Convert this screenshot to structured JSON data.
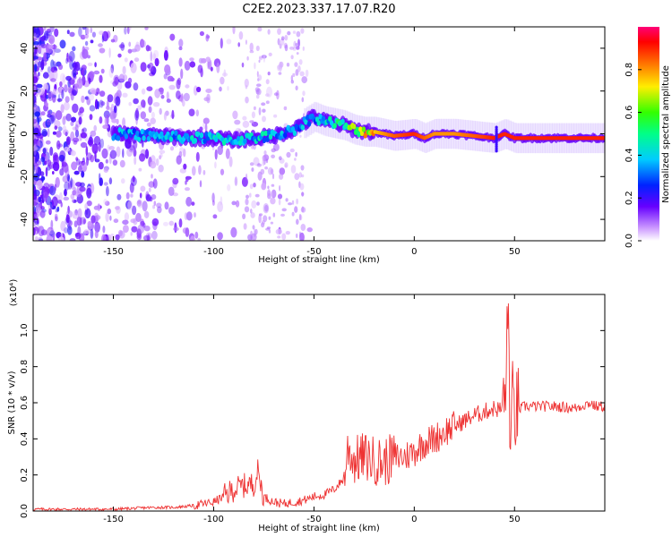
{
  "title": "C2E2.2023.337.17.07.R20",
  "chart_data": [
    {
      "type": "heatmap",
      "xlabel": "Height of straight line (km)",
      "ylabel": "Frequency (Hz)",
      "xlim": [
        -190,
        95
      ],
      "ylim": [
        -50,
        50
      ],
      "xticks": [
        -150,
        -100,
        -50,
        0,
        50
      ],
      "yticks": [
        -40,
        -20,
        0,
        20,
        40
      ],
      "colorbar": {
        "label": "Normalized spectral amplitude",
        "range": [
          0,
          1
        ],
        "ticks": [
          0.0,
          0.2,
          0.4,
          0.6,
          0.8
        ]
      },
      "ridge": {
        "x": [
          -150,
          -130,
          -110,
          -100,
          -90,
          -80,
          -70,
          -60,
          -55,
          -50,
          -45,
          -40,
          -35,
          -30,
          -25,
          -20,
          -15,
          -10,
          0,
          5,
          10,
          20,
          30,
          40,
          45,
          50,
          60,
          70,
          80,
          90,
          95
        ],
        "frequency": [
          0,
          -1,
          -2,
          -2,
          -3,
          -2,
          -1,
          2,
          5,
          8,
          6,
          5,
          4,
          2,
          1,
          1,
          0,
          -1,
          0,
          -2,
          0,
          0,
          -1,
          -2,
          0,
          -2,
          -2,
          -2,
          -2,
          -2,
          -2
        ],
        "amplitude": [
          0.35,
          0.35,
          0.4,
          0.4,
          0.4,
          0.4,
          0.4,
          0.35,
          0.35,
          0.35,
          0.4,
          0.45,
          0.5,
          0.6,
          0.7,
          0.75,
          0.8,
          0.85,
          0.9,
          0.85,
          0.8,
          0.8,
          0.85,
          0.9,
          0.9,
          0.9,
          0.9,
          0.9,
          0.9,
          0.9,
          0.9
        ]
      },
      "noise_region": {
        "x_range": [
          -190,
          -50
        ],
        "frequency_range": [
          -50,
          50
        ]
      },
      "secondary_noise_band": {
        "x_range": [
          -85,
          -55
        ]
      }
    },
    {
      "type": "line",
      "xlabel": "Height of straight line (km)",
      "ylabel": "SNR (10 * v/v)",
      "y_scale_label": "(x10⁴)",
      "xlim": [
        -190,
        95
      ],
      "ylim": [
        0,
        1.2
      ],
      "xticks": [
        -150,
        -100,
        -50,
        0,
        50
      ],
      "yticks": [
        0.0,
        0.2,
        0.4,
        0.6,
        0.8,
        1.0
      ],
      "series": [
        {
          "color": "#ee3333",
          "x": [
            -190,
            -170,
            -150,
            -130,
            -120,
            -110,
            -100,
            -95,
            -90,
            -85,
            -80,
            -78,
            -75,
            -70,
            -65,
            -60,
            -55,
            -50,
            -45,
            -40,
            -35,
            -33,
            -30,
            -25,
            -20,
            -15,
            -10,
            -5,
            0,
            5,
            10,
            15,
            20,
            25,
            30,
            35,
            40,
            43,
            45,
            47,
            48,
            49,
            50,
            55,
            60,
            70,
            80,
            88,
            90,
            95
          ],
          "y": [
            0.01,
            0.01,
            0.01,
            0.02,
            0.02,
            0.03,
            0.05,
            0.08,
            0.12,
            0.14,
            0.15,
            0.22,
            0.08,
            0.05,
            0.04,
            0.05,
            0.06,
            0.08,
            0.09,
            0.12,
            0.18,
            0.35,
            0.28,
            0.3,
            0.28,
            0.27,
            0.3,
            0.3,
            0.33,
            0.38,
            0.4,
            0.44,
            0.47,
            0.5,
            0.53,
            0.55,
            0.57,
            0.56,
            0.6,
            1.1,
            0.3,
            0.6,
            0.55,
            0.58,
            0.58,
            0.58,
            0.57,
            0.6,
            0.58,
            0.58
          ]
        }
      ]
    }
  ]
}
